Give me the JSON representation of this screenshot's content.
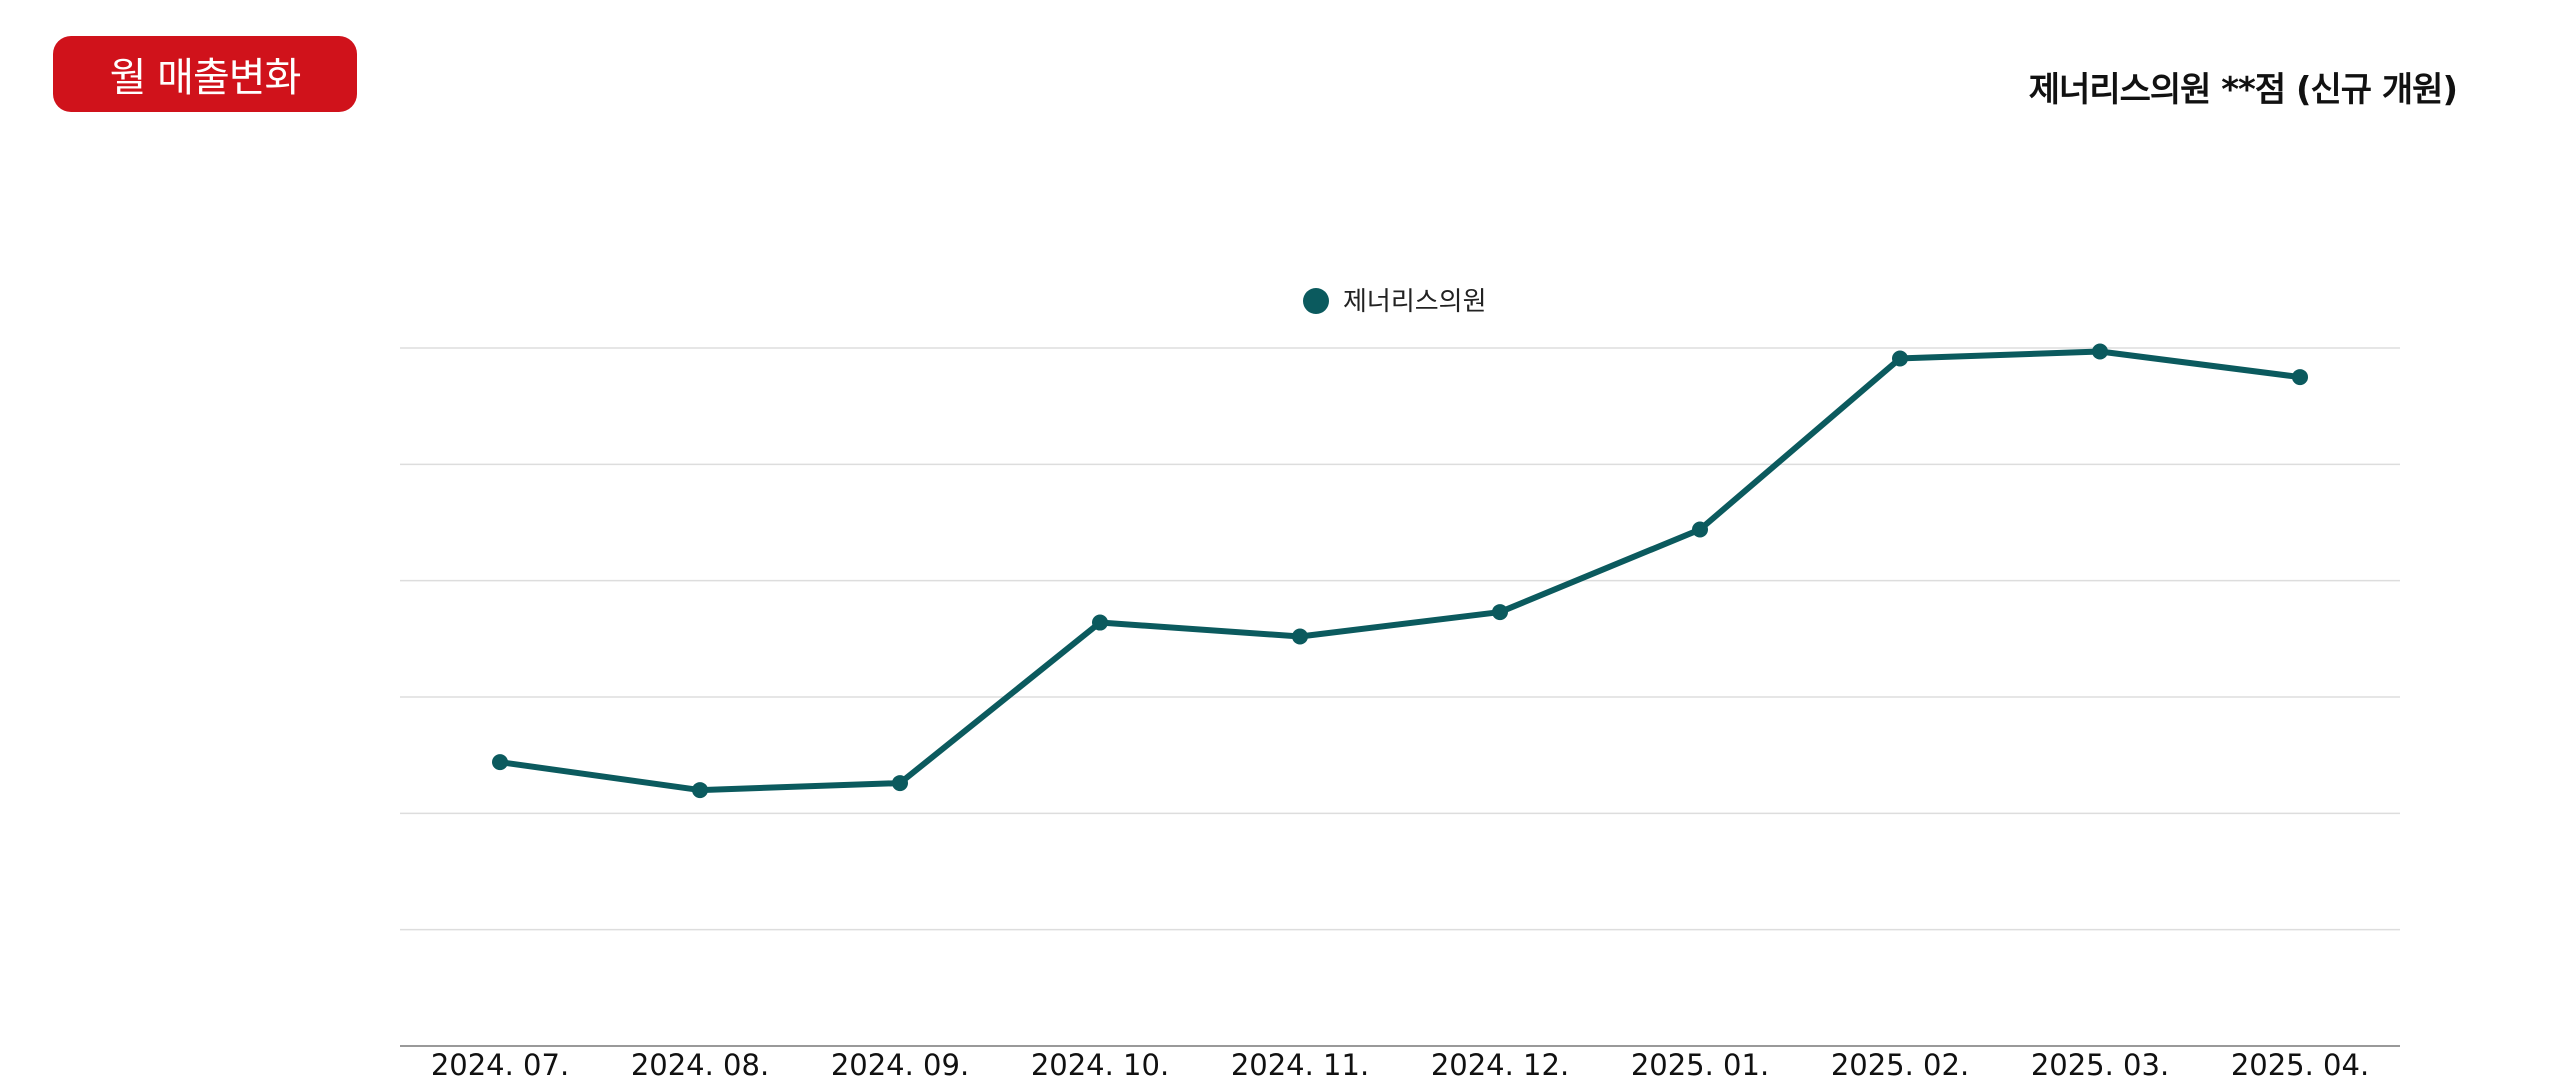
{
  "header": {
    "badge_label": "월 매출변화",
    "subtitle": "제너리스의원 **점 (신규 개원)"
  },
  "colors": {
    "badge": "#D0121B",
    "series": "#0B5A5E",
    "grid": "#DDDDDD",
    "axis": "#999999"
  },
  "chart_data": {
    "type": "line",
    "title": "",
    "xlabel": "",
    "ylabel": "",
    "categories": [
      "2024. 07.",
      "2024. 08.",
      "2024. 09.",
      "2024. 10.",
      "2024. 11.",
      "2024. 12.",
      "2025. 01.",
      "2025. 02.",
      "2025. 03.",
      "2025. 04."
    ],
    "series": [
      {
        "name": "제너리스의원",
        "values": [
          2.44,
          2.2,
          2.26,
          3.64,
          3.52,
          3.73,
          4.44,
          5.91,
          5.97,
          5.75
        ]
      }
    ],
    "ylim": [
      0,
      6
    ],
    "y_ticks_shown": false,
    "grid": true,
    "legend_position": "top-center"
  }
}
